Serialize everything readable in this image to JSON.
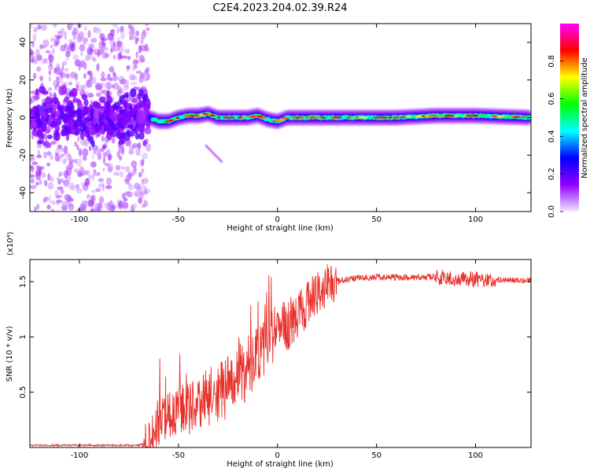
{
  "title": "C2E4.2023.204.02.39.R24",
  "colors": {
    "snr_line": "#e8302a",
    "frame": "#000000"
  },
  "chart_data": [
    {
      "type": "heatmap",
      "xlabel": "Height of straight line (km)",
      "ylabel": "Frequency (Hz)",
      "xlim": [
        -125,
        128
      ],
      "ylim": [
        -50,
        50
      ],
      "x_ticks": [
        -100,
        -50,
        0,
        50,
        100
      ],
      "y_ticks": [
        40,
        20,
        0,
        -20,
        -40
      ],
      "colorbar": {
        "label": "Normalized spectral amplitude",
        "range": [
          0,
          1
        ],
        "ticks": [
          0.0,
          0.2,
          0.4,
          0.6,
          0.8
        ],
        "colormap": [
          "#f2e6ff",
          "#9000ff",
          "#0000ff",
          "#00ffff",
          "#00ff00",
          "#ffff00",
          "#ff0000",
          "#ff00ff"
        ]
      },
      "signal_track": [
        [
          -65,
          0
        ],
        [
          -60,
          -2
        ],
        [
          -55,
          -2
        ],
        [
          -50,
          0
        ],
        [
          -45,
          1
        ],
        [
          -40,
          1
        ],
        [
          -35,
          2
        ],
        [
          -30,
          0
        ],
        [
          -25,
          0
        ],
        [
          -20,
          0
        ],
        [
          -15,
          0
        ],
        [
          -10,
          1
        ],
        [
          -5,
          -1
        ],
        [
          0,
          -2
        ],
        [
          5,
          0
        ],
        [
          10,
          0
        ],
        [
          20,
          0
        ],
        [
          40,
          0
        ],
        [
          60,
          0
        ],
        [
          80,
          1
        ],
        [
          100,
          1
        ],
        [
          128,
          0
        ]
      ]
    },
    {
      "type": "line",
      "xlabel": "Height of straight line (km)",
      "ylabel": "SNR (10 * v/v)",
      "multiplier": "(x10⁴)",
      "xlim": [
        -125,
        128
      ],
      "ylim": [
        0,
        1.7
      ],
      "x_ticks": [
        -100,
        -50,
        0,
        50,
        100
      ],
      "y_ticks": [
        0.5,
        1.0,
        1.5
      ],
      "series": [
        {
          "envelope": [
            [
              -125,
              0.02
            ],
            [
              -70,
              0.02
            ],
            [
              -65,
              0.05
            ],
            [
              -60,
              0.2
            ],
            [
              -55,
              0.3
            ],
            [
              -50,
              0.35
            ],
            [
              -45,
              0.35
            ],
            [
              -40,
              0.4
            ],
            [
              -35,
              0.45
            ],
            [
              -30,
              0.5
            ],
            [
              -25,
              0.55
            ],
            [
              -20,
              0.65
            ],
            [
              -15,
              0.7
            ],
            [
              -10,
              0.85
            ],
            [
              -5,
              0.95
            ],
            [
              0,
              1.05
            ],
            [
              5,
              1.1
            ],
            [
              10,
              1.2
            ],
            [
              15,
              1.3
            ],
            [
              20,
              1.4
            ],
            [
              25,
              1.47
            ],
            [
              30,
              1.5
            ],
            [
              35,
              1.52
            ],
            [
              40,
              1.53
            ],
            [
              50,
              1.54
            ],
            [
              60,
              1.54
            ],
            [
              70,
              1.54
            ],
            [
              80,
              1.54
            ],
            [
              90,
              1.53
            ],
            [
              100,
              1.52
            ],
            [
              110,
              1.52
            ],
            [
              128,
              1.51
            ]
          ]
        }
      ]
    }
  ]
}
